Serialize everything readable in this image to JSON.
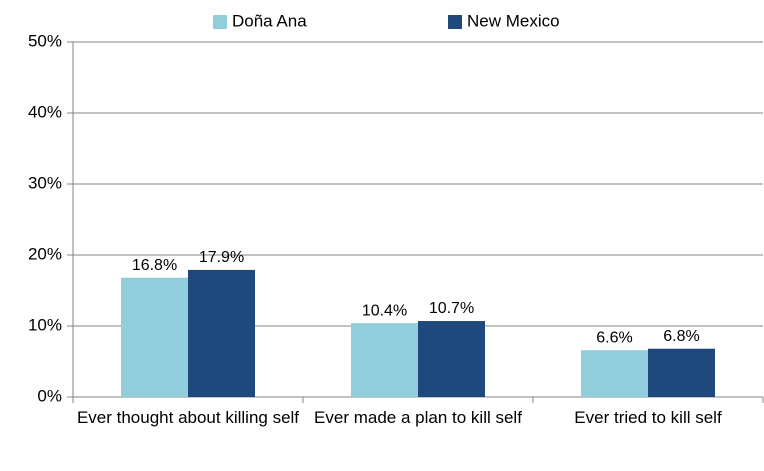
{
  "chart_data": {
    "type": "bar",
    "categories": [
      "Ever thought about killing self",
      "Ever made a plan to kill self",
      "Ever tried to kill self"
    ],
    "series": [
      {
        "name": "Doña Ana",
        "color": "#92cddc",
        "values": [
          16.8,
          10.4,
          6.6
        ],
        "value_labels": [
          "16.8%",
          "10.4%",
          "6.6%"
        ]
      },
      {
        "name": "New Mexico",
        "color": "#1f497d",
        "values": [
          17.9,
          10.7,
          6.8
        ],
        "value_labels": [
          "17.9%",
          "10.7%",
          "6.8%"
        ]
      }
    ],
    "ylim": [
      0,
      50
    ],
    "yticks": [
      {
        "value": 0,
        "label": "0%"
      },
      {
        "value": 10,
        "label": "10%"
      },
      {
        "value": 20,
        "label": "20%"
      },
      {
        "value": 30,
        "label": "30%"
      },
      {
        "value": 40,
        "label": "40%"
      },
      {
        "value": 50,
        "label": "50%"
      }
    ],
    "grid": true,
    "legend": "top"
  }
}
